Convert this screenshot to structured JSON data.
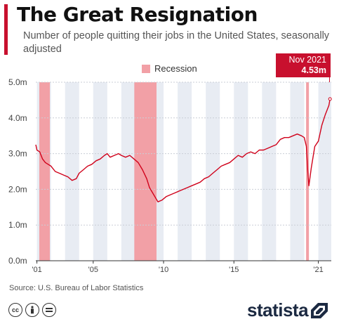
{
  "header": {
    "title": "The Great Resignation",
    "subtitle": "Number of people quitting their jobs in the United States, seasonally adjusted"
  },
  "legend": {
    "recession_label": "Recession"
  },
  "callout": {
    "date": "Nov 2021",
    "value": "4.53m"
  },
  "footer": {
    "source": "Source: U.S. Bureau of Labor Statistics",
    "brand": "statista"
  },
  "license_icons": [
    "creative-commons-icon",
    "attribution-icon",
    "no-derivatives-icon"
  ],
  "colors": {
    "accent": "#c8102e",
    "recession": "#f2a0a6",
    "line": "#d0021b",
    "brand": "#1c2a42"
  },
  "chart_data": {
    "type": "line",
    "title": "The Great Resignation",
    "ylabel": "",
    "xlabel": "",
    "ylim": [
      0,
      5
    ],
    "xlim": [
      2000.92,
      2021.92
    ],
    "y_ticks": [
      0,
      1,
      2,
      3,
      4,
      5
    ],
    "y_tick_labels": [
      "0.0m",
      "1.0m",
      "2.0m",
      "3.0m",
      "4.0m",
      "5.0m"
    ],
    "x_ticks": [
      2001,
      2005,
      2010,
      2015,
      2021
    ],
    "x_tick_labels": [
      "'01",
      "'05",
      "'10",
      "'15",
      "'21"
    ],
    "recessions": [
      [
        2001.17,
        2001.92
      ],
      [
        2007.92,
        2009.5
      ],
      [
        2020.13,
        2020.33
      ]
    ],
    "legend_position": "top-center",
    "series": [
      {
        "x": [
          2000.92,
          2001.0,
          2001.2,
          2001.4,
          2001.6,
          2001.8,
          2002.0,
          2002.3,
          2002.6,
          2002.9,
          2003.2,
          2003.5,
          2003.8,
          2004.0,
          2004.3,
          2004.6,
          2004.9,
          2005.2,
          2005.5,
          2005.8,
          2006.0,
          2006.2,
          2006.5,
          2006.8,
          2007.0,
          2007.3,
          2007.6,
          2007.9,
          2008.2,
          2008.5,
          2008.8,
          2009.0,
          2009.3,
          2009.6,
          2009.9,
          2010.2,
          2010.5,
          2010.8,
          2011.1,
          2011.4,
          2011.7,
          2012.0,
          2012.3,
          2012.6,
          2012.9,
          2013.2,
          2013.5,
          2013.8,
          2014.1,
          2014.4,
          2014.7,
          2015.0,
          2015.3,
          2015.6,
          2015.9,
          2016.2,
          2016.5,
          2016.8,
          2017.1,
          2017.4,
          2017.7,
          2018.0,
          2018.3,
          2018.6,
          2018.9,
          2019.2,
          2019.5,
          2019.8,
          2020.0,
          2020.15,
          2020.25,
          2020.33,
          2020.5,
          2020.75,
          2021.0,
          2021.25,
          2021.5,
          2021.75,
          2021.83
        ],
        "y": [
          3.25,
          3.1,
          3.05,
          2.85,
          2.75,
          2.7,
          2.65,
          2.5,
          2.45,
          2.4,
          2.35,
          2.25,
          2.3,
          2.45,
          2.55,
          2.65,
          2.7,
          2.8,
          2.85,
          2.95,
          3.0,
          2.9,
          2.95,
          3.0,
          2.95,
          2.9,
          2.95,
          2.85,
          2.75,
          2.55,
          2.3,
          2.05,
          1.85,
          1.65,
          1.7,
          1.8,
          1.85,
          1.9,
          1.95,
          2.0,
          2.05,
          2.1,
          2.15,
          2.2,
          2.3,
          2.35,
          2.45,
          2.55,
          2.65,
          2.7,
          2.75,
          2.85,
          2.95,
          2.9,
          3.0,
          3.05,
          3.0,
          3.1,
          3.1,
          3.15,
          3.2,
          3.25,
          3.4,
          3.45,
          3.45,
          3.5,
          3.55,
          3.5,
          3.45,
          3.2,
          2.5,
          2.1,
          2.6,
          3.2,
          3.35,
          3.8,
          4.1,
          4.35,
          4.53
        ]
      }
    ]
  }
}
